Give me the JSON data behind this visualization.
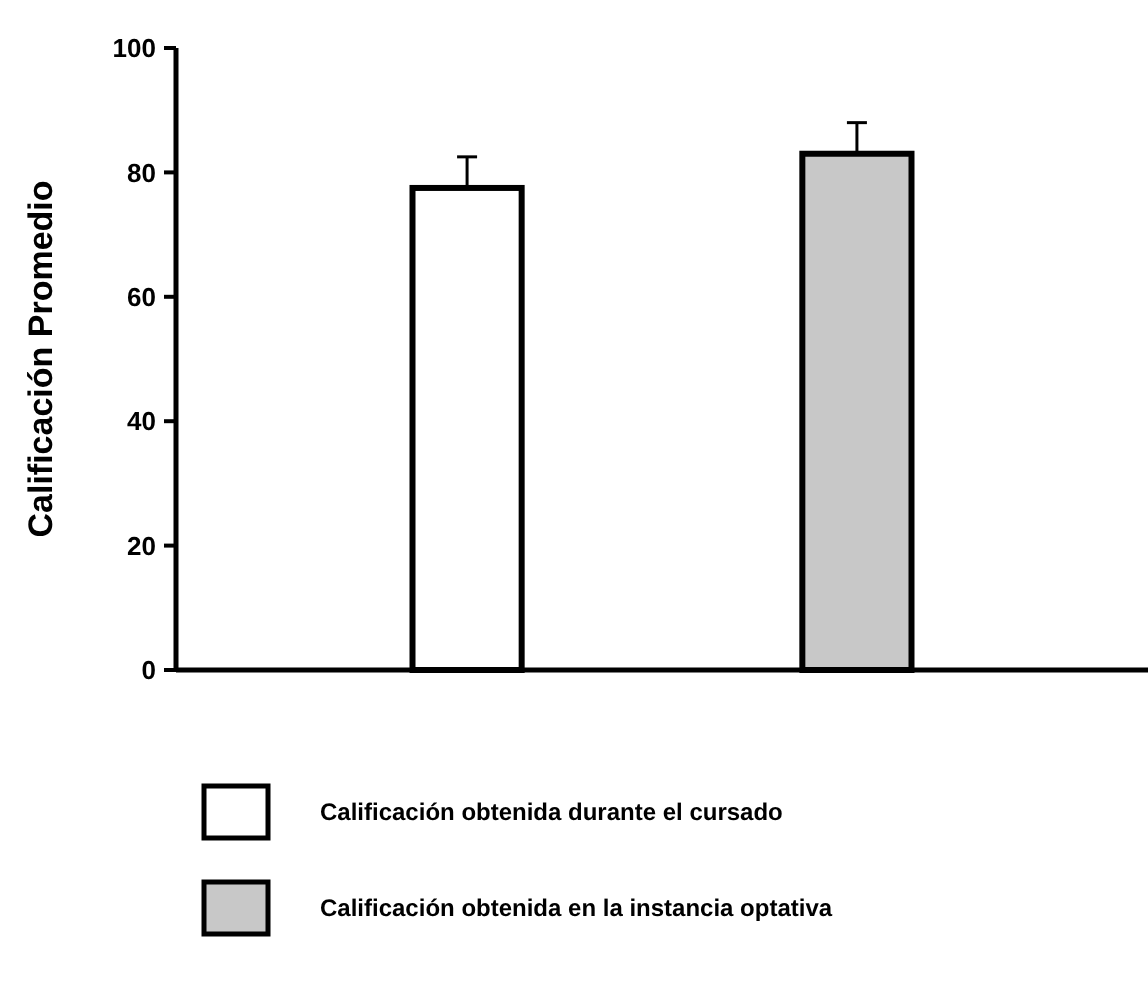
{
  "chart_data": {
    "type": "bar",
    "ylabel": "Calificación Promedio",
    "categories": [
      null
    ],
    "ylim": [
      0,
      100
    ],
    "yticks": [
      0,
      20,
      40,
      60,
      80,
      100
    ],
    "legend": "bottom",
    "series": [
      {
        "name": "Calificación obtenida durante el cursado",
        "color": "#ffffff",
        "values": [
          77.5
        ],
        "errors": [
          5
        ]
      },
      {
        "name": "Calificación obtenida en la instancia optativa",
        "color": "#c8c8c8",
        "values": [
          83
        ],
        "errors": [
          5
        ]
      }
    ]
  }
}
